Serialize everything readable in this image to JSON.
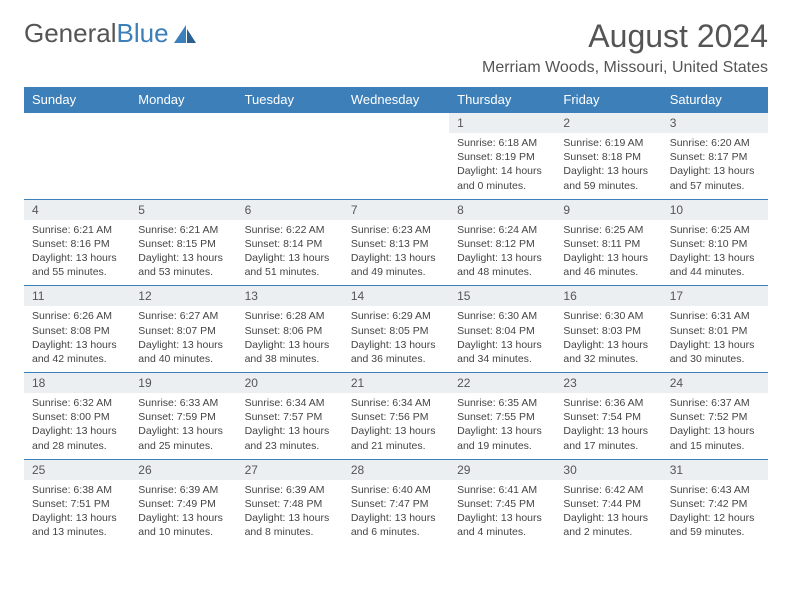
{
  "logo": {
    "textGray": "General",
    "textBlue": "Blue"
  },
  "title": "August 2024",
  "location": "Merriam Woods, Missouri, United States",
  "colors": {
    "accent": "#3d7fb8",
    "headerText": "#ffffff",
    "dayBg": "#eceff1",
    "text": "#555555"
  },
  "dayHeaders": [
    "Sunday",
    "Monday",
    "Tuesday",
    "Wednesday",
    "Thursday",
    "Friday",
    "Saturday"
  ],
  "weeks": [
    [
      null,
      null,
      null,
      null,
      {
        "n": "1",
        "sr": "Sunrise: 6:18 AM",
        "ss": "Sunset: 8:19 PM",
        "dl": "Daylight: 14 hours and 0 minutes."
      },
      {
        "n": "2",
        "sr": "Sunrise: 6:19 AM",
        "ss": "Sunset: 8:18 PM",
        "dl": "Daylight: 13 hours and 59 minutes."
      },
      {
        "n": "3",
        "sr": "Sunrise: 6:20 AM",
        "ss": "Sunset: 8:17 PM",
        "dl": "Daylight: 13 hours and 57 minutes."
      }
    ],
    [
      {
        "n": "4",
        "sr": "Sunrise: 6:21 AM",
        "ss": "Sunset: 8:16 PM",
        "dl": "Daylight: 13 hours and 55 minutes."
      },
      {
        "n": "5",
        "sr": "Sunrise: 6:21 AM",
        "ss": "Sunset: 8:15 PM",
        "dl": "Daylight: 13 hours and 53 minutes."
      },
      {
        "n": "6",
        "sr": "Sunrise: 6:22 AM",
        "ss": "Sunset: 8:14 PM",
        "dl": "Daylight: 13 hours and 51 minutes."
      },
      {
        "n": "7",
        "sr": "Sunrise: 6:23 AM",
        "ss": "Sunset: 8:13 PM",
        "dl": "Daylight: 13 hours and 49 minutes."
      },
      {
        "n": "8",
        "sr": "Sunrise: 6:24 AM",
        "ss": "Sunset: 8:12 PM",
        "dl": "Daylight: 13 hours and 48 minutes."
      },
      {
        "n": "9",
        "sr": "Sunrise: 6:25 AM",
        "ss": "Sunset: 8:11 PM",
        "dl": "Daylight: 13 hours and 46 minutes."
      },
      {
        "n": "10",
        "sr": "Sunrise: 6:25 AM",
        "ss": "Sunset: 8:10 PM",
        "dl": "Daylight: 13 hours and 44 minutes."
      }
    ],
    [
      {
        "n": "11",
        "sr": "Sunrise: 6:26 AM",
        "ss": "Sunset: 8:08 PM",
        "dl": "Daylight: 13 hours and 42 minutes."
      },
      {
        "n": "12",
        "sr": "Sunrise: 6:27 AM",
        "ss": "Sunset: 8:07 PM",
        "dl": "Daylight: 13 hours and 40 minutes."
      },
      {
        "n": "13",
        "sr": "Sunrise: 6:28 AM",
        "ss": "Sunset: 8:06 PM",
        "dl": "Daylight: 13 hours and 38 minutes."
      },
      {
        "n": "14",
        "sr": "Sunrise: 6:29 AM",
        "ss": "Sunset: 8:05 PM",
        "dl": "Daylight: 13 hours and 36 minutes."
      },
      {
        "n": "15",
        "sr": "Sunrise: 6:30 AM",
        "ss": "Sunset: 8:04 PM",
        "dl": "Daylight: 13 hours and 34 minutes."
      },
      {
        "n": "16",
        "sr": "Sunrise: 6:30 AM",
        "ss": "Sunset: 8:03 PM",
        "dl": "Daylight: 13 hours and 32 minutes."
      },
      {
        "n": "17",
        "sr": "Sunrise: 6:31 AM",
        "ss": "Sunset: 8:01 PM",
        "dl": "Daylight: 13 hours and 30 minutes."
      }
    ],
    [
      {
        "n": "18",
        "sr": "Sunrise: 6:32 AM",
        "ss": "Sunset: 8:00 PM",
        "dl": "Daylight: 13 hours and 28 minutes."
      },
      {
        "n": "19",
        "sr": "Sunrise: 6:33 AM",
        "ss": "Sunset: 7:59 PM",
        "dl": "Daylight: 13 hours and 25 minutes."
      },
      {
        "n": "20",
        "sr": "Sunrise: 6:34 AM",
        "ss": "Sunset: 7:57 PM",
        "dl": "Daylight: 13 hours and 23 minutes."
      },
      {
        "n": "21",
        "sr": "Sunrise: 6:34 AM",
        "ss": "Sunset: 7:56 PM",
        "dl": "Daylight: 13 hours and 21 minutes."
      },
      {
        "n": "22",
        "sr": "Sunrise: 6:35 AM",
        "ss": "Sunset: 7:55 PM",
        "dl": "Daylight: 13 hours and 19 minutes."
      },
      {
        "n": "23",
        "sr": "Sunrise: 6:36 AM",
        "ss": "Sunset: 7:54 PM",
        "dl": "Daylight: 13 hours and 17 minutes."
      },
      {
        "n": "24",
        "sr": "Sunrise: 6:37 AM",
        "ss": "Sunset: 7:52 PM",
        "dl": "Daylight: 13 hours and 15 minutes."
      }
    ],
    [
      {
        "n": "25",
        "sr": "Sunrise: 6:38 AM",
        "ss": "Sunset: 7:51 PM",
        "dl": "Daylight: 13 hours and 13 minutes."
      },
      {
        "n": "26",
        "sr": "Sunrise: 6:39 AM",
        "ss": "Sunset: 7:49 PM",
        "dl": "Daylight: 13 hours and 10 minutes."
      },
      {
        "n": "27",
        "sr": "Sunrise: 6:39 AM",
        "ss": "Sunset: 7:48 PM",
        "dl": "Daylight: 13 hours and 8 minutes."
      },
      {
        "n": "28",
        "sr": "Sunrise: 6:40 AM",
        "ss": "Sunset: 7:47 PM",
        "dl": "Daylight: 13 hours and 6 minutes."
      },
      {
        "n": "29",
        "sr": "Sunrise: 6:41 AM",
        "ss": "Sunset: 7:45 PM",
        "dl": "Daylight: 13 hours and 4 minutes."
      },
      {
        "n": "30",
        "sr": "Sunrise: 6:42 AM",
        "ss": "Sunset: 7:44 PM",
        "dl": "Daylight: 13 hours and 2 minutes."
      },
      {
        "n": "31",
        "sr": "Sunrise: 6:43 AM",
        "ss": "Sunset: 7:42 PM",
        "dl": "Daylight: 12 hours and 59 minutes."
      }
    ]
  ]
}
